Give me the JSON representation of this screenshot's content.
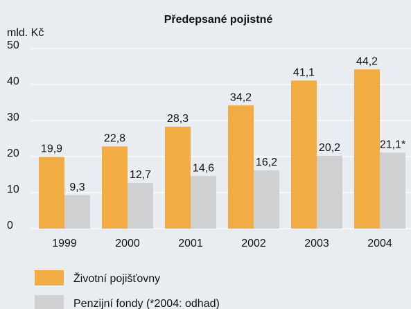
{
  "chart_data": {
    "type": "bar",
    "title": "Předepsané pojistné",
    "y_label": "mld. Kč",
    "categories": [
      "1999",
      "2000",
      "2001",
      "2002",
      "2003",
      "2004"
    ],
    "series": [
      {
        "name": "Životní pojišťovny",
        "color": "#f2ac44",
        "values": [
          19.9,
          22.8,
          28.3,
          34.2,
          41.1,
          44.2
        ],
        "value_labels": [
          "19,9",
          "22,8",
          "28,3",
          "34,2",
          "41,1",
          "44,2"
        ]
      },
      {
        "name": "Penzijní fondy (*2004: odhad)",
        "color": "#cfd0d2",
        "values": [
          9.3,
          12.7,
          14.6,
          16.2,
          20.2,
          21.1
        ],
        "value_labels": [
          "9,3",
          "12,7",
          "14,6",
          "16,2",
          "20,2",
          "21,1*"
        ]
      }
    ],
    "ylim": [
      0,
      50
    ],
    "yticks": [
      0,
      10,
      20,
      30,
      40,
      50
    ],
    "grid": true
  }
}
